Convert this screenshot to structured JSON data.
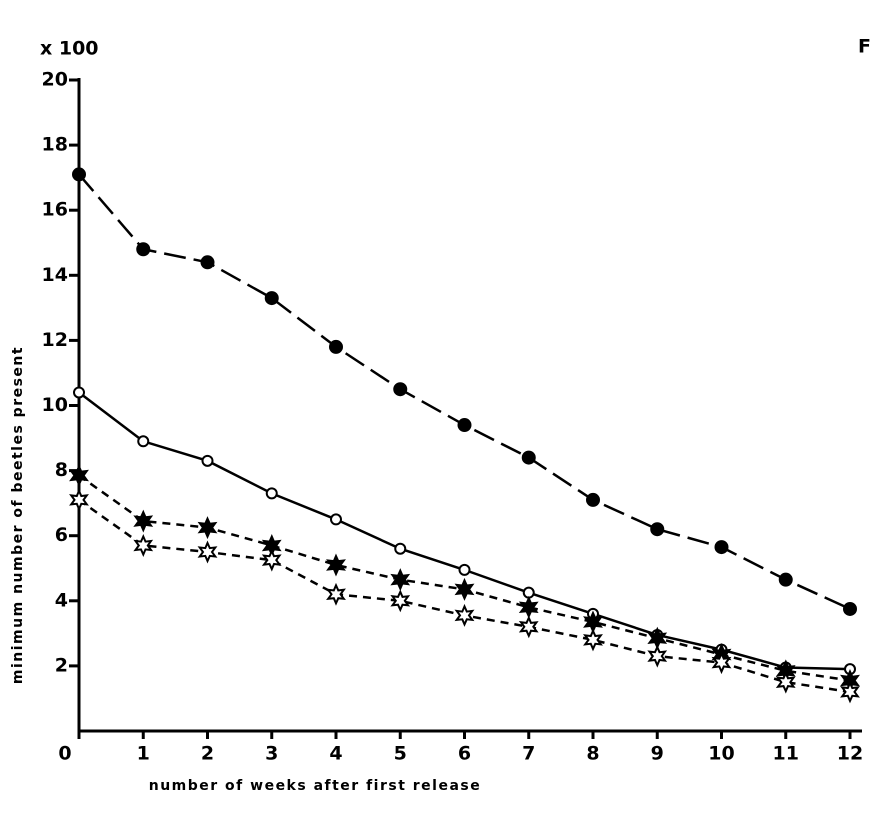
{
  "chart_data": {
    "type": "line",
    "corner_text": "F",
    "y_multiplier": "x 100",
    "xlabel": "number of weeks after first release",
    "ylabel": "minimum number of beetles present",
    "x": [
      0,
      1,
      2,
      3,
      4,
      5,
      6,
      7,
      8,
      9,
      10,
      11,
      12
    ],
    "xlim": [
      0,
      12
    ],
    "xticks": [
      0,
      1,
      2,
      3,
      4,
      5,
      6,
      7,
      8,
      9,
      10,
      11,
      12
    ],
    "ylim": [
      0,
      20
    ],
    "yticks": [
      2,
      4,
      6,
      8,
      10,
      12,
      14,
      16,
      18,
      20
    ],
    "grid": false,
    "series": [
      {
        "color": "#000000",
        "marker": "filled-circle",
        "dash": "long",
        "values": [
          17.1,
          14.8,
          14.4,
          13.3,
          11.8,
          10.5,
          9.4,
          8.4,
          7.1,
          6.2,
          5.65,
          4.65,
          3.75
        ]
      },
      {
        "color": "#000000",
        "marker": "open-circle",
        "dash": "solid",
        "values": [
          10.4,
          8.9,
          8.3,
          7.3,
          6.5,
          5.6,
          4.95,
          4.25,
          3.6,
          2.95,
          2.5,
          1.95,
          1.9
        ]
      },
      {
        "color": "#000000",
        "marker": "filled-star",
        "dash": "short",
        "values": [
          7.85,
          6.45,
          6.25,
          5.7,
          5.1,
          4.65,
          4.35,
          3.8,
          3.35,
          2.85,
          2.35,
          1.85,
          1.55
        ]
      },
      {
        "color": "#000000",
        "marker": "open-star",
        "dash": "short",
        "values": [
          7.1,
          5.7,
          5.5,
          5.25,
          4.2,
          4.0,
          3.55,
          3.2,
          2.8,
          2.3,
          2.1,
          1.5,
          1.2
        ]
      }
    ]
  }
}
